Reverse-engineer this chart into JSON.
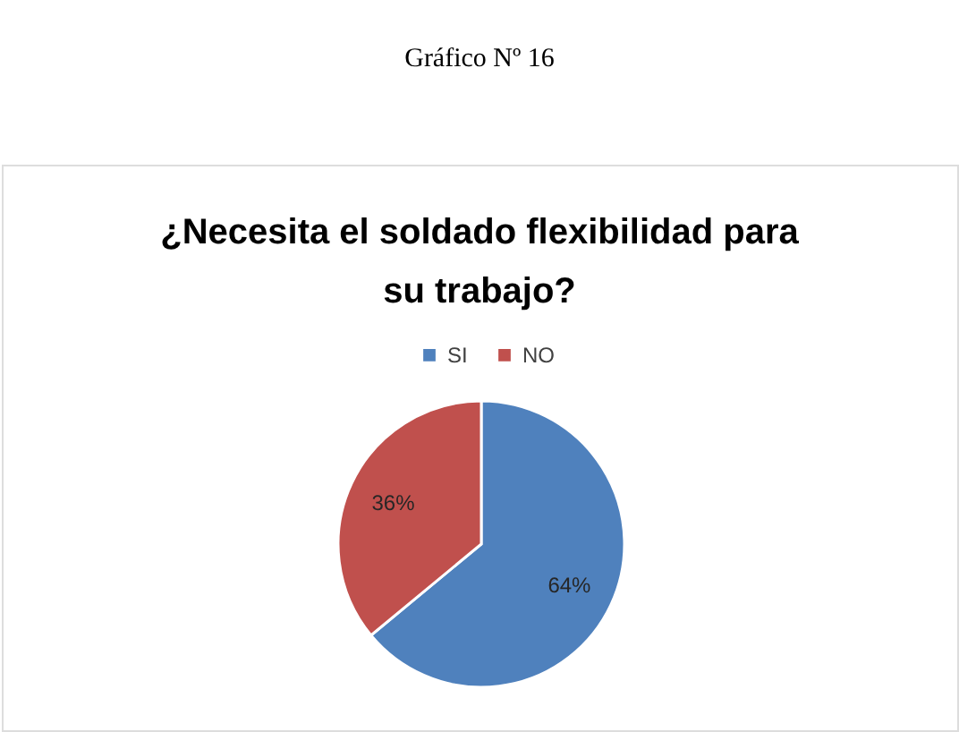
{
  "chart_data": {
    "type": "pie",
    "title": "¿Necesita el soldado flexibilidad para su trabajo?",
    "annotations": [
      "Gráfico Nº 16"
    ],
    "categories": [
      "SI",
      "NO"
    ],
    "values": [
      64,
      36
    ],
    "colors": [
      "#4f81bd",
      "#c0504d"
    ],
    "value_labels": [
      "64%",
      "36%"
    ],
    "legend": "top"
  }
}
